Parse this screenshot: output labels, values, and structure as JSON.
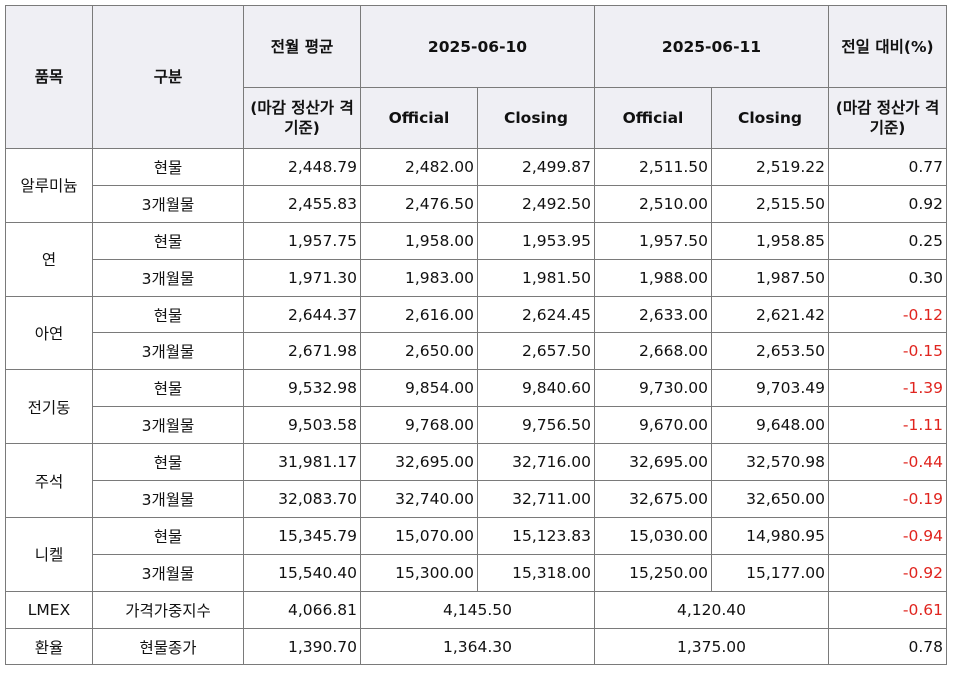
{
  "headers": {
    "item": "품목",
    "category": "구분",
    "prev_month_avg": "전월 평균",
    "prev_month_basis": "(마감 정산가 격 기준)",
    "date1": "2025-06-10",
    "date2": "2025-06-11",
    "change": "전일 대비(%)",
    "change_basis": "(마감 정산가 격 기준)",
    "official": "Official",
    "closing": "Closing"
  },
  "groups": [
    {
      "name": "알루미늄",
      "rows": [
        {
          "type": "현물",
          "avg": "2,448.79",
          "o1": "2,482.00",
          "c1": "2,499.87",
          "o2": "2,511.50",
          "c2": "2,519.22",
          "chg": "0.77"
        },
        {
          "type": "3개월물",
          "avg": "2,455.83",
          "o1": "2,476.50",
          "c1": "2,492.50",
          "o2": "2,510.00",
          "c2": "2,515.50",
          "chg": "0.92"
        }
      ]
    },
    {
      "name": "연",
      "rows": [
        {
          "type": "현물",
          "avg": "1,957.75",
          "o1": "1,958.00",
          "c1": "1,953.95",
          "o2": "1,957.50",
          "c2": "1,958.85",
          "chg": "0.25"
        },
        {
          "type": "3개월물",
          "avg": "1,971.30",
          "o1": "1,983.00",
          "c1": "1,981.50",
          "o2": "1,988.00",
          "c2": "1,987.50",
          "chg": "0.30"
        }
      ]
    },
    {
      "name": "아연",
      "rows": [
        {
          "type": "현물",
          "avg": "2,644.37",
          "o1": "2,616.00",
          "c1": "2,624.45",
          "o2": "2,633.00",
          "c2": "2,621.42",
          "chg": "-0.12"
        },
        {
          "type": "3개월물",
          "avg": "2,671.98",
          "o1": "2,650.00",
          "c1": "2,657.50",
          "o2": "2,668.00",
          "c2": "2,653.50",
          "chg": "-0.15"
        }
      ]
    },
    {
      "name": "전기동",
      "rows": [
        {
          "type": "현물",
          "avg": "9,532.98",
          "o1": "9,854.00",
          "c1": "9,840.60",
          "o2": "9,730.00",
          "c2": "9,703.49",
          "chg": "-1.39"
        },
        {
          "type": "3개월물",
          "avg": "9,503.58",
          "o1": "9,768.00",
          "c1": "9,756.50",
          "o2": "9,670.00",
          "c2": "9,648.00",
          "chg": "-1.11"
        }
      ]
    },
    {
      "name": "주석",
      "rows": [
        {
          "type": "현물",
          "avg": "31,981.17",
          "o1": "32,695.00",
          "c1": "32,716.00",
          "o2": "32,695.00",
          "c2": "32,570.98",
          "chg": "-0.44"
        },
        {
          "type": "3개월물",
          "avg": "32,083.70",
          "o1": "32,740.00",
          "c1": "32,711.00",
          "o2": "32,675.00",
          "c2": "32,650.00",
          "chg": "-0.19"
        }
      ]
    },
    {
      "name": "니켈",
      "rows": [
        {
          "type": "현물",
          "avg": "15,345.79",
          "o1": "15,070.00",
          "c1": "15,123.83",
          "o2": "15,030.00",
          "c2": "14,980.95",
          "chg": "-0.94"
        },
        {
          "type": "3개월물",
          "avg": "15,540.40",
          "o1": "15,300.00",
          "c1": "15,318.00",
          "o2": "15,250.00",
          "c2": "15,177.00",
          "chg": "-0.92"
        }
      ]
    }
  ],
  "lmex": {
    "name": "LMEX",
    "type": "가격가중지수",
    "avg": "4,066.81",
    "d1": "4,145.50",
    "d2": "4,120.40",
    "chg": "-0.61"
  },
  "fx": {
    "name": "환율",
    "type": "현물종가",
    "avg": "1,390.70",
    "d1": "1,364.30",
    "d2": "1,375.00",
    "chg": "0.78"
  },
  "colors": {
    "negative": "#e0241e",
    "header_bg": "#efeff4",
    "border": "#7a7a7a"
  }
}
